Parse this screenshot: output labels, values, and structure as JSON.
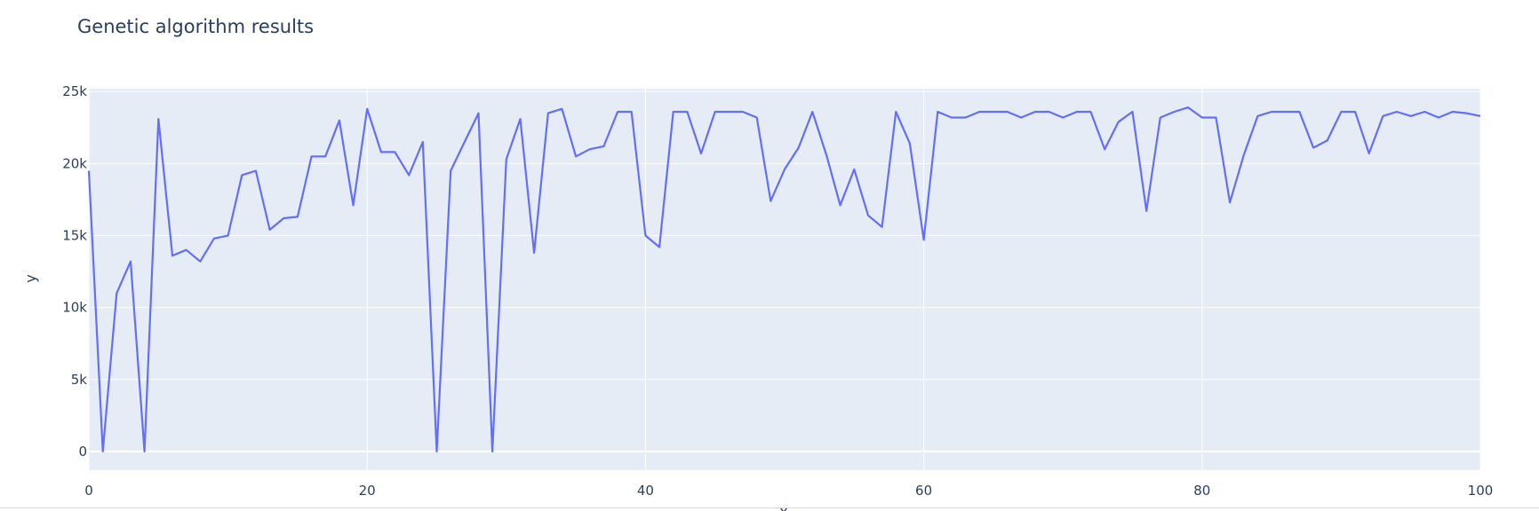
{
  "chart_data": {
    "type": "line",
    "title": "Genetic algorithm results",
    "xlabel": "x",
    "ylabel": "y",
    "xlim": [
      0,
      100
    ],
    "ylim": [
      -1300,
      25200
    ],
    "x_ticks": [
      0,
      20,
      40,
      60,
      80,
      100
    ],
    "x_tick_labels": [
      "0",
      "20",
      "40",
      "60",
      "80",
      "100"
    ],
    "y_ticks": [
      0,
      5000,
      10000,
      15000,
      20000,
      25000
    ],
    "y_tick_labels": [
      "0",
      "5k",
      "10k",
      "15k",
      "20k",
      "25k"
    ],
    "grid": true,
    "legend": false,
    "colors": {
      "line": "#636efa",
      "plot_bg": "#e5ecf6",
      "grid": "#ffffff",
      "text": "#2a3f5f"
    },
    "series": [
      {
        "x": [
          0,
          1,
          2,
          3,
          4,
          5,
          6,
          7,
          8,
          9,
          10,
          11,
          12,
          13,
          14,
          15,
          16,
          17,
          18,
          19,
          20,
          21,
          22,
          23,
          24,
          25,
          26,
          27,
          28,
          29,
          30,
          31,
          32,
          33,
          34,
          35,
          36,
          37,
          38,
          39,
          40,
          41,
          42,
          43,
          44,
          45,
          46,
          47,
          48,
          49,
          50,
          51,
          52,
          53,
          54,
          55,
          56,
          57,
          58,
          59,
          60,
          61,
          62,
          63,
          64,
          65,
          66,
          67,
          68,
          69,
          70,
          71,
          72,
          73,
          74,
          75,
          76,
          77,
          78,
          79,
          80,
          81,
          82,
          83,
          84,
          85,
          86,
          87,
          88,
          89,
          90,
          91,
          92,
          93,
          94,
          95,
          96,
          97,
          98,
          99,
          100
        ],
        "values": [
          19500,
          0,
          11000,
          13200,
          0,
          23100,
          13600,
          14000,
          13200,
          14800,
          15000,
          19200,
          19500,
          15400,
          16200,
          16300,
          20500,
          20500,
          23000,
          17100,
          23800,
          20800,
          20800,
          19200,
          21500,
          0,
          19500,
          21500,
          23500,
          0,
          20300,
          23100,
          13800,
          23500,
          23800,
          20500,
          21000,
          21200,
          23600,
          23600,
          15000,
          14200,
          23600,
          23600,
          20700,
          23600,
          23600,
          23600,
          23200,
          17400,
          19600,
          21100,
          23600,
          20600,
          17100,
          19600,
          16400,
          15600,
          23600,
          21400,
          14700,
          23600,
          23200,
          23200,
          23600,
          23600,
          23600,
          23200,
          23600,
          23600,
          23200,
          23600,
          23600,
          21000,
          22900,
          23600,
          16700,
          23200,
          23600,
          23900,
          23200,
          23200,
          17300,
          20600,
          23300,
          23600,
          23600,
          23600,
          21100,
          21600,
          23600,
          23600,
          20700,
          23300,
          23600,
          23300,
          23600,
          23200,
          23600,
          23500,
          23300
        ]
      }
    ]
  }
}
